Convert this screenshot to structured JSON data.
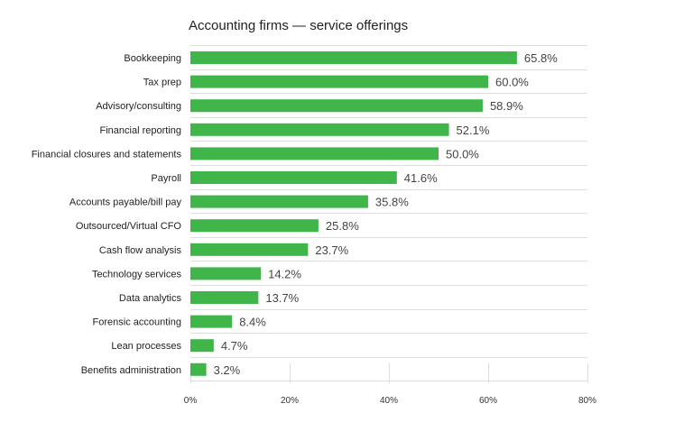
{
  "chart_data": {
    "type": "bar",
    "orientation": "horizontal",
    "title": "Accounting firms — service offerings",
    "categories": [
      "Bookkeeping",
      "Tax prep",
      "Advisory/consulting",
      "Financial reporting",
      "Financial closures and statements",
      "Payroll",
      "Accounts payable/bill pay",
      "Outsourced/Virtual CFO",
      "Cash flow analysis",
      "Technology services",
      "Data analytics",
      "Forensic accounting",
      "Lean processes",
      "Benefits administration"
    ],
    "values": [
      65.8,
      60.0,
      58.9,
      52.1,
      50.0,
      41.6,
      35.8,
      25.8,
      23.7,
      14.2,
      13.7,
      8.4,
      4.7,
      3.2
    ],
    "value_labels": [
      "65.8%",
      "60.0%",
      "58.9%",
      "52.1%",
      "50.0%",
      "41.6%",
      "35.8%",
      "25.8%",
      "23.7%",
      "14.2%",
      "13.7%",
      "8.4%",
      "4.7%",
      "3.2%"
    ],
    "xlim": [
      0,
      80
    ],
    "xticks": [
      0,
      20,
      40,
      60,
      80
    ],
    "xtick_labels": [
      "0%",
      "20%",
      "40%",
      "60%",
      "80%"
    ],
    "xlabel": "",
    "ylabel": "",
    "grid": true,
    "bar_color": "#3fb54a",
    "grid_color": "#dddddd"
  }
}
